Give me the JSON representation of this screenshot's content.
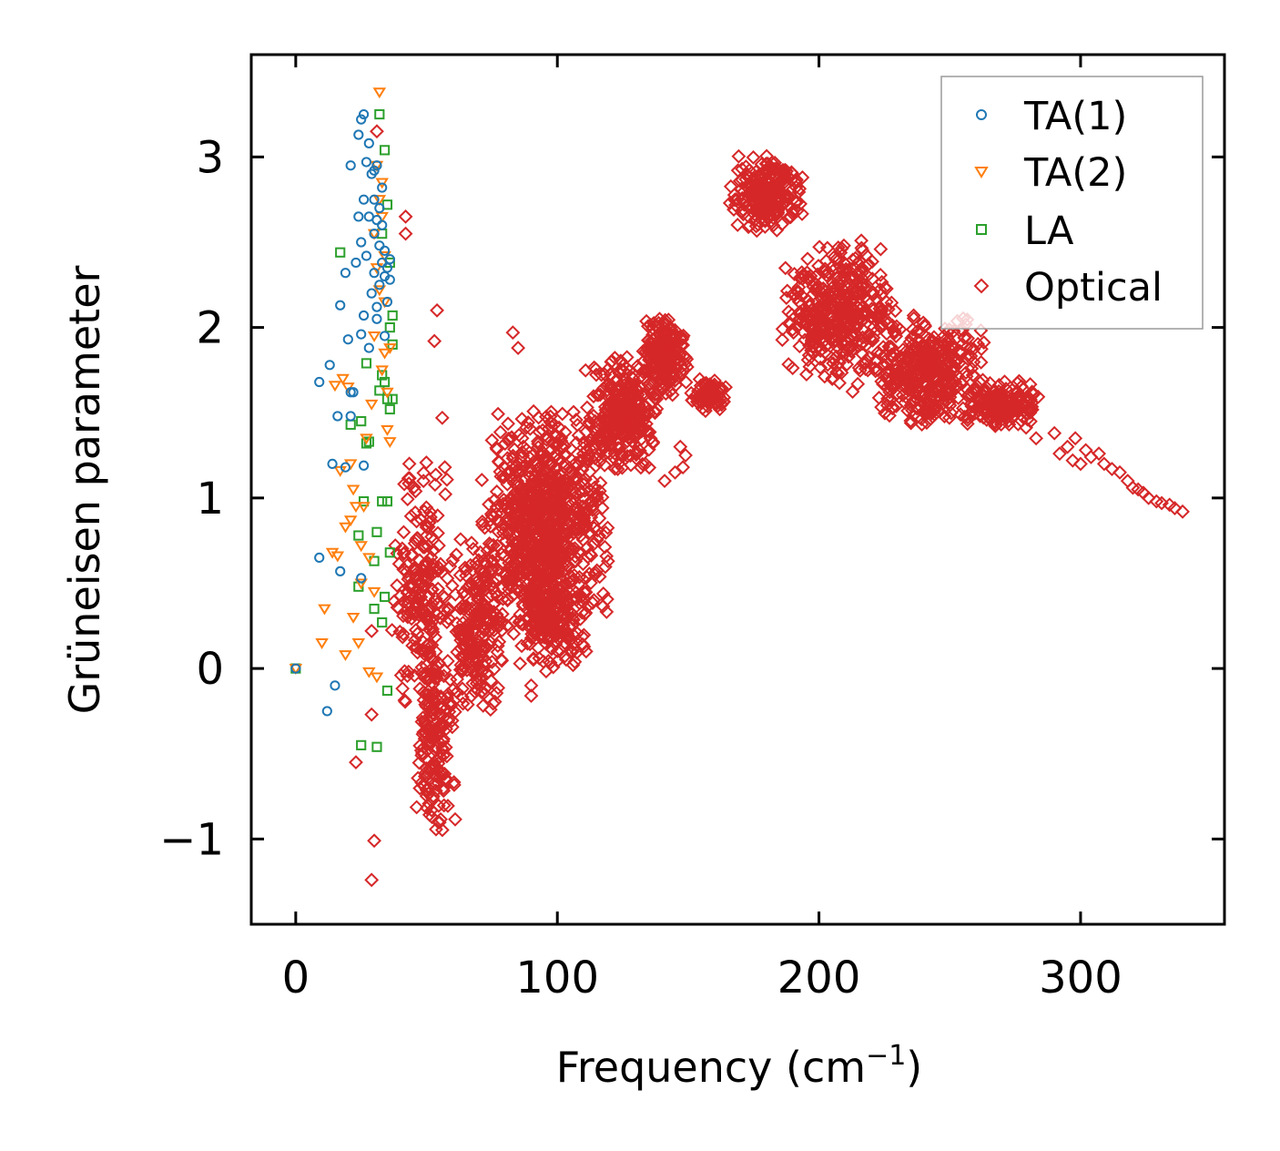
{
  "chart_data": {
    "type": "scatter",
    "title": "",
    "xlabel": "Frequency (cm",
    "xlabel_sup": "−1",
    "xlabel_close": ")",
    "ylabel": "Grüneisen parameter",
    "xlim": [
      -17,
      355
    ],
    "ylim": [
      -1.5,
      3.6
    ],
    "xticks": [
      0,
      100,
      200,
      300
    ],
    "xtick_labels": [
      "0",
      "100",
      "200",
      "300"
    ],
    "yticks": [
      -1,
      0,
      1,
      2,
      3
    ],
    "ytick_labels": [
      "−1",
      "0",
      "1",
      "2",
      "3"
    ],
    "legend_position": "top-right",
    "series": [
      {
        "name": "TA(1)",
        "marker": "circle",
        "color": "#1f77b4",
        "points": [
          [
            0,
            0
          ],
          [
            9,
            0.65
          ],
          [
            9,
            1.68
          ],
          [
            12,
            -0.25
          ],
          [
            13,
            1.78
          ],
          [
            14,
            1.2
          ],
          [
            15,
            -0.1
          ],
          [
            16,
            1.48
          ],
          [
            17,
            0.57
          ],
          [
            17,
            2.13
          ],
          [
            19,
            1.18
          ],
          [
            19,
            2.32
          ],
          [
            20,
            1.93
          ],
          [
            21,
            1.48
          ],
          [
            21,
            1.62
          ],
          [
            21,
            2.95
          ],
          [
            22,
            1.62
          ],
          [
            23,
            2.38
          ],
          [
            24,
            2.65
          ],
          [
            24,
            3.13
          ],
          [
            25,
            0.53
          ],
          [
            25,
            1.96
          ],
          [
            25,
            2.5
          ],
          [
            25,
            3.22
          ],
          [
            26,
            1.19
          ],
          [
            26,
            2.75
          ],
          [
            26,
            3.25
          ],
          [
            26,
            2.07
          ],
          [
            27,
            2.42
          ],
          [
            27,
            2.97
          ],
          [
            28,
            1.88
          ],
          [
            28,
            3.08
          ],
          [
            28,
            2.65
          ],
          [
            29,
            2.2
          ],
          [
            29,
            2.9
          ],
          [
            30,
            2.55
          ],
          [
            30,
            2.32
          ],
          [
            30,
            2.75
          ],
          [
            30,
            2.92
          ],
          [
            31,
            2.12
          ],
          [
            31,
            2.63
          ],
          [
            31,
            2.95
          ],
          [
            31,
            2.05
          ],
          [
            32,
            2.25
          ],
          [
            32,
            2.7
          ],
          [
            32,
            2.48
          ],
          [
            33,
            2.38
          ],
          [
            33,
            2.6
          ],
          [
            33,
            2.82
          ],
          [
            34,
            2.3
          ],
          [
            34,
            2.45
          ],
          [
            34,
            1.95
          ],
          [
            35,
            2.35
          ],
          [
            35,
            2.15
          ],
          [
            36,
            2.28
          ],
          [
            36,
            2.4
          ]
        ]
      },
      {
        "name": "TA(2)",
        "marker": "triangle-down",
        "color": "#ff7f0e",
        "points": [
          [
            0,
            0
          ],
          [
            10,
            0.15
          ],
          [
            11,
            0.35
          ],
          [
            14,
            0.68
          ],
          [
            15,
            1.66
          ],
          [
            16,
            0.66
          ],
          [
            17,
            1.16
          ],
          [
            18,
            1.7
          ],
          [
            19,
            0.08
          ],
          [
            19,
            0.83
          ],
          [
            20,
            1.65
          ],
          [
            21,
            0.87
          ],
          [
            21,
            1.2
          ],
          [
            22,
            0.3
          ],
          [
            22,
            1.05
          ],
          [
            23,
            0.95
          ],
          [
            24,
            0.15
          ],
          [
            25,
            0.5
          ],
          [
            25,
            0.72
          ],
          [
            26,
            0.95
          ],
          [
            27,
            1.35
          ],
          [
            28,
            -0.02
          ],
          [
            28,
            0.65
          ],
          [
            29,
            1.55
          ],
          [
            30,
            0.45
          ],
          [
            30,
            1.95
          ],
          [
            30,
            2.55
          ],
          [
            31,
            2.35
          ],
          [
            31,
            2.95
          ],
          [
            31,
            -0.05
          ],
          [
            32,
            2.22
          ],
          [
            32,
            2.75
          ],
          [
            32,
            3.38
          ],
          [
            33,
            1.75
          ],
          [
            33,
            2.65
          ],
          [
            33,
            2.85
          ],
          [
            34,
            1.85
          ],
          [
            34,
            2.15
          ],
          [
            34,
            2.42
          ],
          [
            35,
            1.4
          ],
          [
            35,
            1.62
          ],
          [
            36,
            1.33
          ],
          [
            36,
            1.88
          ]
        ]
      },
      {
        "name": "LA",
        "marker": "square",
        "color": "#2ca02c",
        "points": [
          [
            0,
            0
          ],
          [
            17,
            2.44
          ],
          [
            21,
            1.43
          ],
          [
            24,
            0.48
          ],
          [
            24,
            0.78
          ],
          [
            25,
            -0.45
          ],
          [
            25,
            1.45
          ],
          [
            26,
            0.98
          ],
          [
            27,
            1.32
          ],
          [
            27,
            1.79
          ],
          [
            28,
            1.33
          ],
          [
            30,
            0.35
          ],
          [
            30,
            0.63
          ],
          [
            31,
            -0.46
          ],
          [
            31,
            0.8
          ],
          [
            32,
            1.63
          ],
          [
            32,
            3.25
          ],
          [
            33,
            0.98
          ],
          [
            33,
            1.72
          ],
          [
            33,
            2.55
          ],
          [
            33,
            0.27
          ],
          [
            34,
            0.42
          ],
          [
            34,
            3.04
          ],
          [
            34,
            1.68
          ],
          [
            35,
            0.98
          ],
          [
            35,
            1.58
          ],
          [
            35,
            2.72
          ],
          [
            35,
            -0.13
          ],
          [
            36,
            0.68
          ],
          [
            36,
            1.52
          ],
          [
            36,
            2.0
          ],
          [
            36,
            2.38
          ],
          [
            37,
            1.58
          ],
          [
            37,
            1.9
          ],
          [
            37,
            2.07
          ]
        ]
      },
      {
        "name": "Optical",
        "marker": "diamond",
        "color": "#d62728",
        "points": [
          [
            29,
            -1.24
          ],
          [
            30,
            -1.01
          ],
          [
            23,
            -0.55
          ],
          [
            29,
            -0.27
          ],
          [
            29,
            0.22
          ],
          [
            31,
            3.15
          ],
          [
            42,
            2.65
          ],
          [
            42,
            2.55
          ],
          [
            54,
            2.1
          ],
          [
            53,
            1.92
          ],
          [
            56,
            1.47
          ],
          [
            57,
            1.18
          ],
          [
            83,
            1.97
          ],
          [
            85,
            1.88
          ],
          [
            90,
            -0.1
          ],
          [
            90,
            -0.16
          ],
          [
            106,
            0.02
          ],
          [
            111,
            0.1
          ],
          [
            141,
            1.1
          ],
          [
            145,
            1.15
          ],
          [
            147,
            1.3
          ],
          [
            148,
            1.18
          ],
          [
            149,
            1.25
          ],
          [
            283,
            1.35
          ],
          [
            290,
            1.38
          ],
          [
            292,
            1.26
          ],
          [
            295,
            1.3
          ],
          [
            297,
            1.22
          ],
          [
            298,
            1.35
          ],
          [
            300,
            1.2
          ],
          [
            302,
            1.28
          ],
          [
            304,
            1.24
          ],
          [
            307,
            1.26
          ],
          [
            309,
            1.2
          ],
          [
            312,
            1.17
          ],
          [
            315,
            1.15
          ],
          [
            318,
            1.1
          ],
          [
            320,
            1.06
          ],
          [
            322,
            1.05
          ],
          [
            324,
            1.03
          ],
          [
            326,
            1.0
          ],
          [
            329,
            0.98
          ],
          [
            331,
            0.97
          ],
          [
            334,
            0.96
          ],
          [
            336,
            0.94
          ],
          [
            339,
            0.92
          ]
        ],
        "clusters": [
          {
            "x": [
              36,
              60
            ],
            "y": [
              -0.4,
              1.3
            ],
            "n": 220
          },
          {
            "x": [
              45,
              62
            ],
            "y": [
              -1.0,
              0.1
            ],
            "n": 160
          },
          {
            "x": [
              58,
              80
            ],
            "y": [
              -0.3,
              0.8
            ],
            "n": 220
          },
          {
            "x": [
              70,
              120
            ],
            "y": [
              0.1,
              1.55
            ],
            "n": 950
          },
          {
            "x": [
              85,
              110
            ],
            "y": [
              -0.05,
              0.6
            ],
            "n": 160
          },
          {
            "x": [
              110,
              140
            ],
            "y": [
              1.1,
              1.85
            ],
            "n": 320
          },
          {
            "x": [
              132,
              150
            ],
            "y": [
              1.6,
              2.08
            ],
            "n": 220
          },
          {
            "x": [
              150,
              165
            ],
            "y": [
              1.5,
              1.7
            ],
            "n": 90
          },
          {
            "x": [
              165,
              195
            ],
            "y": [
              2.55,
              3.02
            ],
            "n": 230
          },
          {
            "x": [
              185,
              230
            ],
            "y": [
              1.6,
              2.55
            ],
            "n": 420
          },
          {
            "x": [
              220,
              265
            ],
            "y": [
              1.4,
              2.1
            ],
            "n": 380
          },
          {
            "x": [
              255,
              285
            ],
            "y": [
              1.4,
              1.7
            ],
            "n": 170
          }
        ]
      }
    ]
  }
}
